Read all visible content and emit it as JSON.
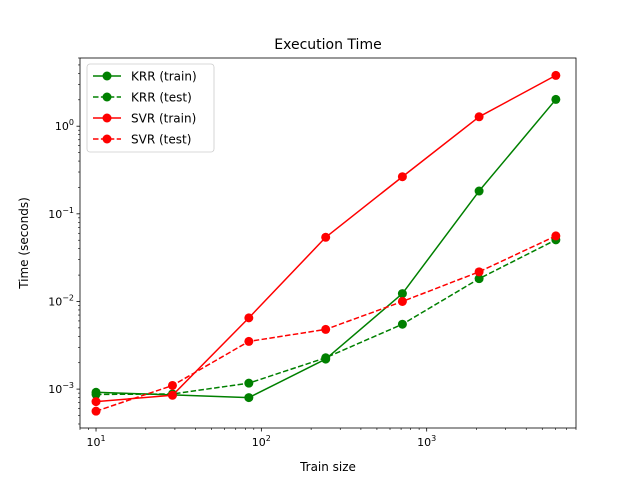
{
  "chart_data": {
    "type": "line",
    "title": "Execution Time",
    "xlabel": "Train size",
    "ylabel": "Time (seconds)",
    "xscale": "log",
    "yscale": "log",
    "xlim": [
      8,
      8000
    ],
    "ylim": [
      0.00036,
      6
    ],
    "grid": false,
    "legend_position": "top-left",
    "x": [
      10,
      29,
      84,
      245,
      713,
      2075,
      6043
    ],
    "x_ticks": [
      {
        "value": 10,
        "base": "10",
        "exp": "1"
      },
      {
        "value": 100,
        "base": "10",
        "exp": "2"
      },
      {
        "value": 1000,
        "base": "10",
        "exp": "3"
      }
    ],
    "y_ticks": [
      {
        "value": 0.001,
        "base": "10",
        "exp": "−3"
      },
      {
        "value": 0.01,
        "base": "10",
        "exp": "−2"
      },
      {
        "value": 0.1,
        "base": "10",
        "exp": "−1"
      },
      {
        "value": 1,
        "base": "10",
        "exp": "0"
      }
    ],
    "series": [
      {
        "name": "KRR (train)",
        "color": "#008000",
        "dashed": false,
        "values": [
          0.00092,
          0.00086,
          0.0008,
          0.0022,
          0.0123,
          0.182,
          2.02
        ]
      },
      {
        "name": "KRR (test)",
        "color": "#008000",
        "dashed": true,
        "values": [
          0.00087,
          0.00088,
          0.00117,
          0.00228,
          0.0055,
          0.0182,
          0.0505
        ]
      },
      {
        "name": "SVR (train)",
        "color": "#ff0000",
        "dashed": false,
        "values": [
          0.00072,
          0.00085,
          0.0065,
          0.054,
          0.265,
          1.28,
          3.8
        ]
      },
      {
        "name": "SVR (test)",
        "color": "#ff0000",
        "dashed": true,
        "values": [
          0.00056,
          0.0011,
          0.0035,
          0.0048,
          0.01,
          0.0218,
          0.056
        ]
      }
    ]
  }
}
